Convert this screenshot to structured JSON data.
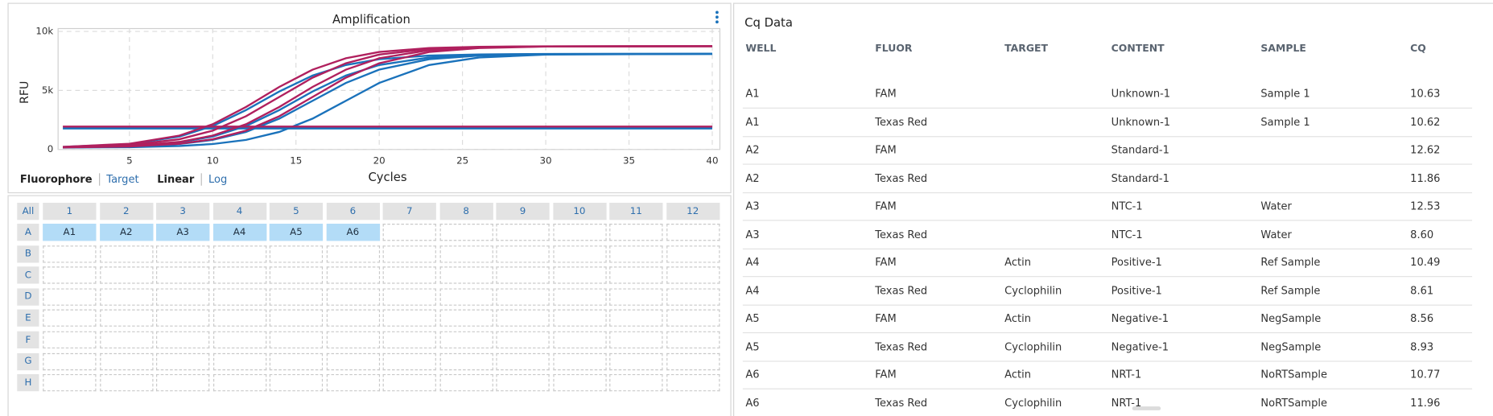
{
  "chart_data": {
    "type": "line",
    "title": "Amplification",
    "x_label": "Cycles",
    "y_label": "RFU",
    "x": [
      1,
      5,
      8,
      10,
      12,
      14,
      16,
      18,
      20,
      23,
      26,
      30,
      40
    ],
    "series": [
      {
        "color": "#1a72bb",
        "values": [
          214,
          460,
          1096,
          1986,
          3338,
          4912,
          6264,
          7154,
          7647,
          7957,
          8052,
          8092,
          8100
        ]
      },
      {
        "color": "#1a72bb",
        "values": [
          179,
          293,
          603,
          1096,
          1986,
          3338,
          4912,
          6264,
          7154,
          7790,
          8005,
          8080,
          8100
        ]
      },
      {
        "color": "#1a72bb",
        "values": [
          170,
          245,
          460,
          810,
          1486,
          2615,
          4125,
          5636,
          6764,
          7647,
          7957,
          8068,
          8100
        ]
      },
      {
        "color": "#1a72bb",
        "values": [
          159,
          194,
          293,
          460,
          810,
          1486,
          2615,
          4125,
          5636,
          7154,
          7790,
          8036,
          8100
        ]
      },
      {
        "color": "#1a72bb",
        "values": [
          1774,
          1774,
          1774,
          1774,
          1774,
          1774,
          1774,
          1774,
          1774,
          1774,
          1774,
          1774,
          1774
        ]
      },
      {
        "color": "#b0205e",
        "values": [
          219,
          485,
          1173,
          2137,
          3599,
          5301,
          6763,
          7727,
          8260,
          8595,
          8698,
          8741,
          8750
        ]
      },
      {
        "color": "#b0205e",
        "values": [
          197,
          382,
          864,
          1595,
          2816,
          4450,
          6084,
          7305,
          8036,
          8518,
          8681,
          8733,
          8750
        ]
      },
      {
        "color": "#b0205e",
        "values": [
          182,
          305,
          640,
          1173,
          2137,
          3599,
          5301,
          6763,
          7727,
          8415,
          8647,
          8729,
          8750
        ]
      },
      {
        "color": "#b0205e",
        "values": [
          172,
          253,
          485,
          864,
          1595,
          2816,
          4450,
          6084,
          7305,
          8260,
          8595,
          8716,
          8750
        ]
      },
      {
        "color": "#b0205e",
        "values": [
          1935,
          1935,
          1935,
          1935,
          1935,
          1935,
          1935,
          1935,
          1935,
          1935,
          1935,
          1935,
          1935
        ]
      }
    ],
    "xlim": [
      1,
      40
    ],
    "xticks": [
      5,
      10,
      15,
      20,
      25,
      30,
      35,
      40
    ],
    "ylim": [
      0,
      10000
    ],
    "yticks": [
      0,
      {
        "value": 5000,
        "label": "5k"
      },
      {
        "value": 10000,
        "label": "10k"
      }
    ],
    "grid": true
  },
  "controls": {
    "color_by": [
      "Fluorophore",
      "Target"
    ],
    "scale": [
      "Linear",
      "Log"
    ]
  },
  "plate": {
    "all": "All",
    "columns": [
      "1",
      "2",
      "3",
      "4",
      "5",
      "6",
      "7",
      "8",
      "9",
      "10",
      "11",
      "12"
    ],
    "rows": [
      "A",
      "B",
      "C",
      "D",
      "E",
      "F",
      "G",
      "H"
    ],
    "selected_wells": [
      "A1",
      "A2",
      "A3",
      "A4",
      "A5",
      "A6"
    ]
  },
  "cq_table": {
    "title": "Cq Data",
    "columns": [
      "WELL",
      "FLUOR",
      "TARGET",
      "CONTENT",
      "SAMPLE",
      "CQ"
    ],
    "rows": [
      [
        "A1",
        "FAM",
        null,
        "Unknown-1",
        "Sample 1",
        "10.63"
      ],
      [
        "A1",
        "Texas Red",
        null,
        "Unknown-1",
        "Sample 1",
        "10.62"
      ],
      [
        "A2",
        "FAM",
        null,
        "Standard-1",
        null,
        "12.62"
      ],
      [
        "A2",
        "Texas Red",
        null,
        "Standard-1",
        null,
        "11.86"
      ],
      [
        "A3",
        "FAM",
        null,
        "NTC-1",
        "Water",
        "12.53"
      ],
      [
        "A3",
        "Texas Red",
        null,
        "NTC-1",
        "Water",
        "8.60"
      ],
      [
        "A4",
        "FAM",
        "Actin",
        "Positive-1",
        "Ref Sample",
        "10.49"
      ],
      [
        "A4",
        "Texas Red",
        "Cyclophilin",
        "Positive-1",
        "Ref Sample",
        "8.61"
      ],
      [
        "A5",
        "FAM",
        "Actin",
        "Negative-1",
        "NegSample",
        "8.56"
      ],
      [
        "A5",
        "Texas Red",
        "Cyclophilin",
        "Negative-1",
        "NegSample",
        "8.93"
      ],
      [
        "A6",
        "FAM",
        "Actin",
        "NRT-1",
        "NoRTSample",
        "10.77"
      ],
      [
        "A6",
        "Texas Red",
        "Cyclophilin",
        "NRT-1",
        "NoRTSample",
        "11.96"
      ]
    ]
  }
}
